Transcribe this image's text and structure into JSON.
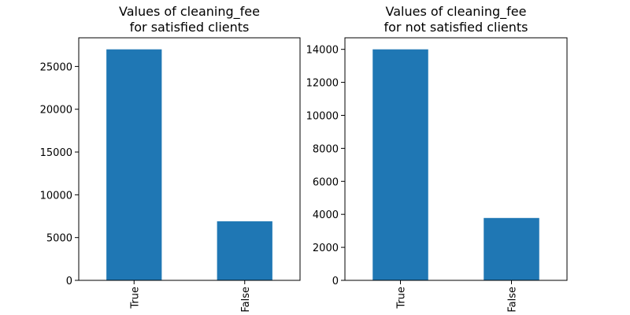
{
  "chart_data": [
    {
      "type": "bar",
      "title_line1": "Values of cleaning_fee",
      "title_line2": "for satisfied clients",
      "categories": [
        "True",
        "False"
      ],
      "values": [
        27000,
        6900
      ],
      "ylim": [
        0,
        28350
      ],
      "yticks": [
        0,
        5000,
        10000,
        15000,
        20000,
        25000
      ],
      "ytick_labels": [
        "0",
        "5000",
        "10000",
        "15000",
        "20000",
        "25000"
      ],
      "bar_color": "#1f77b4",
      "grid": false,
      "legend": "none"
    },
    {
      "type": "bar",
      "title_line1": "Values of cleaning_fee",
      "title_line2": "for not satisfied clients",
      "categories": [
        "True",
        "False"
      ],
      "values": [
        14000,
        3780
      ],
      "ylim": [
        0,
        14700
      ],
      "yticks": [
        0,
        2000,
        4000,
        6000,
        8000,
        10000,
        12000,
        14000
      ],
      "ytick_labels": [
        "0",
        "2000",
        "4000",
        "6000",
        "8000",
        "10000",
        "12000",
        "14000"
      ],
      "bar_color": "#1f77b4",
      "grid": false,
      "legend": "none"
    }
  ]
}
